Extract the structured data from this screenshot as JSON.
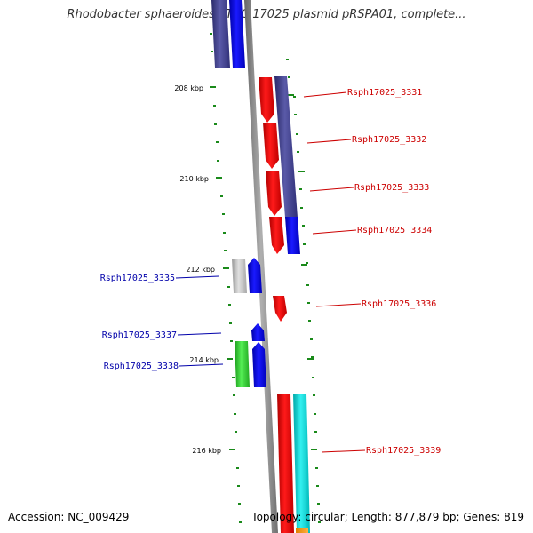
{
  "title": "Rhodobacter sphaeroides ATCC 17025 plasmid pRSPA01, complete...",
  "footer": {
    "accession": "Accession: NC_009429",
    "info": "Topology: circular; Length: 877,879 bp; Genes: 819"
  },
  "colors": {
    "backbone": "#8a8a8a",
    "tick": "#1a8a1a",
    "label_forward": "#cc0000",
    "label_reverse": "#0000aa"
  },
  "ticks": [
    {
      "kbp": 208,
      "label": "208 kbp"
    },
    {
      "kbp": 210,
      "label": "210 kbp"
    },
    {
      "kbp": 212,
      "label": "212 kbp"
    },
    {
      "kbp": 214,
      "label": "214 kbp"
    },
    {
      "kbp": 216,
      "label": "216 kbp"
    }
  ],
  "gene_labels": [
    {
      "text": "Rsph17025_3331",
      "strand": "forward"
    },
    {
      "text": "Rsph17025_3332",
      "strand": "forward"
    },
    {
      "text": "Rsph17025_3333",
      "strand": "forward"
    },
    {
      "text": "Rsph17025_3334",
      "strand": "forward"
    },
    {
      "text": "Rsph17025_3335",
      "strand": "reverse"
    },
    {
      "text": "Rsph17025_3336",
      "strand": "forward"
    },
    {
      "text": "Rsph17025_3337",
      "strand": "reverse"
    },
    {
      "text": "Rsph17025_3338",
      "strand": "reverse"
    },
    {
      "text": "Rsph17025_3339",
      "strand": "forward"
    }
  ]
}
